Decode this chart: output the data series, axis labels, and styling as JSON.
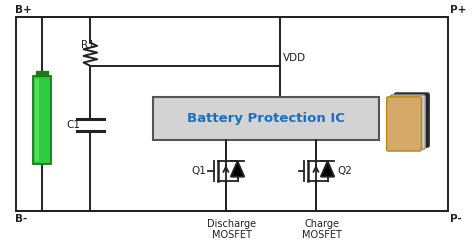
{
  "bg_color": "#ffffff",
  "border_color": "#222222",
  "box_color": "#d3d3d3",
  "box_edge": "#555555",
  "box_text": "Battery Protection IC",
  "box_text_color": "#1a6ec7",
  "vdd_label": "VDD",
  "q1_label": "Q1",
  "q2_label": "Q2",
  "r1_label": "R1",
  "c1_label": "C1",
  "bplus_label": "B+",
  "bminus_label": "B-",
  "pplus_label": "P+",
  "pminus_label": "P-",
  "discharge_label": "Discharge\nMOSFET",
  "charge_label": "Charge\nMOSFET",
  "line_color": "#222222",
  "component_color": "#222222",
  "battery_green": "#2ecc40",
  "battery_dark": "#1a7a1a"
}
